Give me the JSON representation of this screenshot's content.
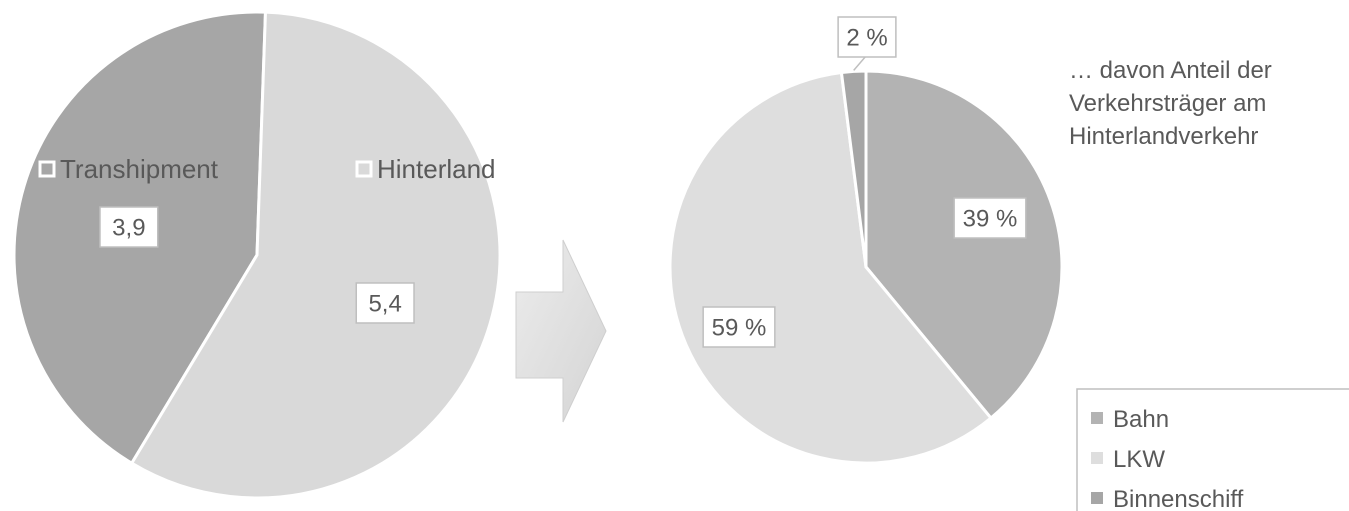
{
  "chart_data": [
    {
      "type": "pie",
      "categories": [
        "Transhipment",
        "Hinterland"
      ],
      "values": [
        3.9,
        5.4
      ],
      "data_labels": [
        "3,9",
        "5,4"
      ],
      "colors": [
        "#a6a6a6",
        "#d9d9d9"
      ],
      "legend_position": "inside"
    },
    {
      "type": "pie",
      "categories": [
        "Bahn",
        "LKW",
        "Binnenschiff"
      ],
      "values": [
        39,
        59,
        2
      ],
      "data_labels": [
        "39 %",
        "59 %",
        "2 %"
      ],
      "colors": [
        "#b3b3b3",
        "#dedede",
        "#a6a6a6"
      ],
      "title": "… davon Anteil der Verkehrsträger am Hinterlandverkehr",
      "title_lines": [
        "… davon Anteil der",
        "Verkehrsträger am",
        "Hinterlandverkehr"
      ],
      "legend_position": "bottom-right"
    }
  ],
  "arrow": {
    "icon": "right-arrow-icon",
    "color": "#e0e0e0"
  }
}
